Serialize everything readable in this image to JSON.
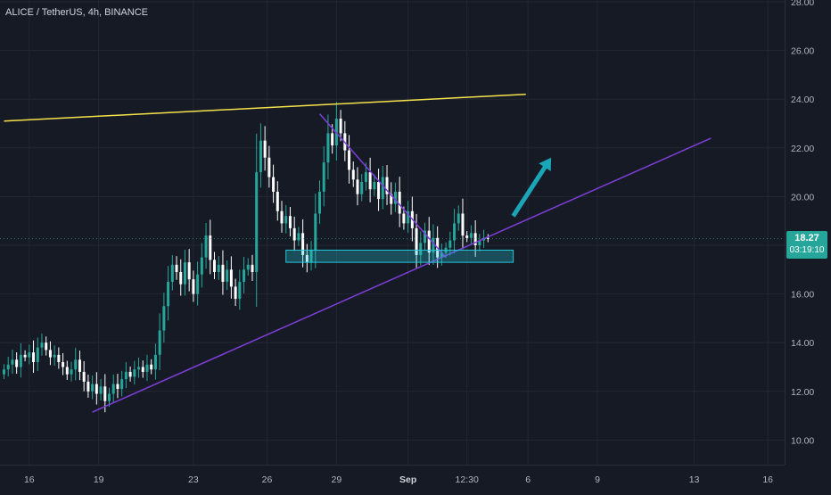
{
  "symbol_title": "ALICE / TetherUS, 4h, BINANCE",
  "price_badge": {
    "price": "18.27",
    "countdown": "03:19:10"
  },
  "colors": {
    "background": "#161a25",
    "grid": "#232733",
    "up": "#26a69a",
    "down": "#ffffff",
    "resistance": "#f5e24b",
    "trendline": "#7e3fd9",
    "zone": "#26c6da",
    "arrow": "#1ba6b8"
  },
  "chart_data": {
    "type": "candlestick",
    "title": "ALICE / TetherUS, 4h, BINANCE",
    "ylim": [
      9.2,
      28.0
    ],
    "y_ticks": [
      "28.00",
      "26.00",
      "24.00",
      "22.00",
      "20.00",
      "18.00",
      "16.00",
      "14.00",
      "12.00",
      "10.00"
    ],
    "x_ticks": [
      "16",
      "19",
      "23",
      "26",
      "29",
      "Sep",
      "12:30",
      "6",
      "9",
      "13",
      "16"
    ],
    "x_tick_bold": [
      "Sep"
    ],
    "grid": true,
    "last_price": 18.27,
    "closes": [
      12.9,
      13.1,
      13.3,
      13.0,
      13.5,
      13.4,
      13.6,
      13.2,
      13.8,
      14.0,
      13.7,
      13.4,
      13.5,
      13.2,
      13.0,
      12.7,
      12.9,
      13.3,
      12.8,
      12.4,
      12.0,
      12.3,
      11.9,
      12.2,
      11.6,
      11.9,
      12.3,
      12.1,
      12.5,
      12.8,
      12.6,
      12.9,
      13.0,
      12.8,
      13.1,
      12.9,
      13.5,
      14.5,
      15.5,
      16.5,
      17.2,
      16.9,
      16.4,
      17.3,
      16.6,
      16.0,
      16.8,
      17.5,
      18.4,
      17.4,
      16.9,
      17.2,
      16.5,
      17.0,
      16.3,
      15.8,
      16.5,
      17.0,
      17.2,
      16.9,
      21.0,
      22.3,
      21.6,
      20.8,
      20.2,
      19.4,
      18.9,
      19.2,
      18.7,
      18.2,
      18.5,
      17.6,
      17.3,
      17.8,
      19.3,
      20.2,
      21.4,
      22.6,
      22.1,
      23.2,
      22.6,
      21.9,
      21.1,
      20.7,
      20.1,
      20.6,
      21.0,
      20.3,
      20.6,
      19.9,
      20.8,
      20.1,
      19.7,
      20.2,
      19.3,
      18.9,
      19.4,
      18.7,
      17.6,
      18.1,
      18.6,
      17.7,
      18.3,
      17.5,
      17.7,
      17.9,
      18.2,
      18.9,
      19.3,
      18.4,
      18.3,
      18.5,
      18.0,
      18.2,
      18.3,
      18.27
    ],
    "markers": [
      {
        "label": "Sep 12:30 price marker",
        "value": 18.27
      }
    ],
    "annotations": [
      {
        "type": "line",
        "name": "resistance",
        "from": [
          0,
          23.1
        ],
        "to": [
          124,
          24.2
        ]
      },
      {
        "type": "line",
        "name": "rising-support",
        "from": [
          21,
          11.15
        ],
        "to": [
          168,
          22.4
        ]
      },
      {
        "type": "line",
        "name": "falling-trendline",
        "from": [
          75,
          23.4
        ],
        "to": [
          105,
          17.5
        ]
      },
      {
        "type": "rect",
        "name": "demand-zone",
        "from": [
          67,
          17.8
        ],
        "to": [
          121,
          17.3
        ]
      },
      {
        "type": "arrow",
        "name": "breakout-arrow",
        "from": [
          121,
          19.2
        ],
        "to": [
          130,
          21.6
        ]
      }
    ]
  }
}
